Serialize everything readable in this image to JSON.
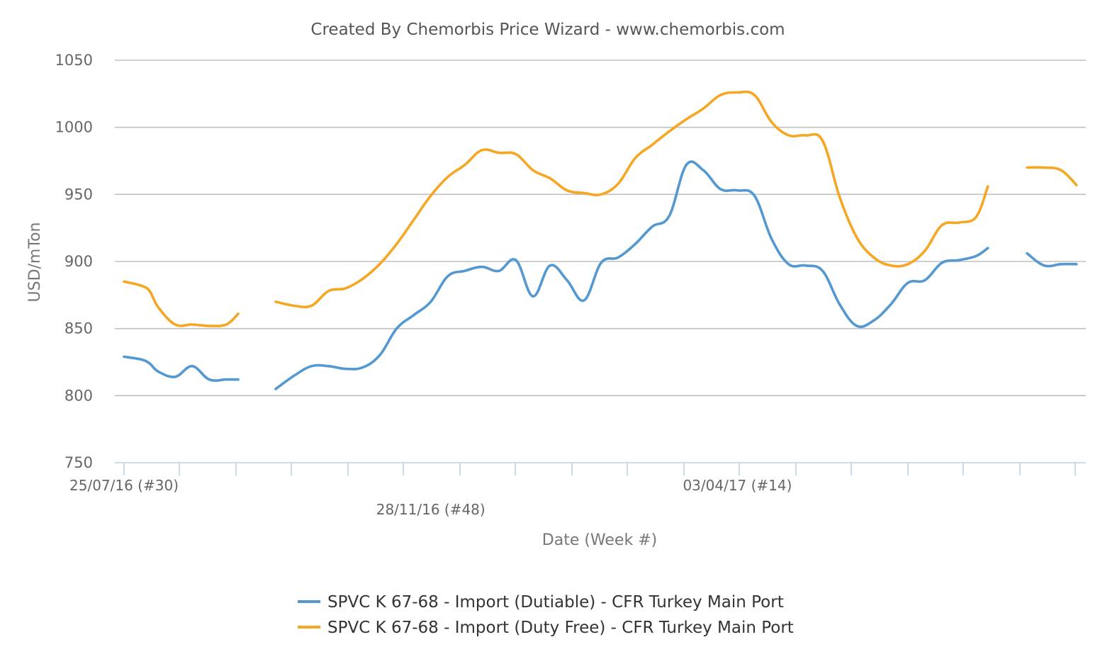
{
  "chart_data": {
    "type": "line",
    "title": "Created By Chemorbis Price Wizard - www.chemorbis.com",
    "xlabel": "Date (Week #)",
    "ylabel": "USD/mTon",
    "ylim": [
      750,
      1050
    ],
    "yticks": [
      750,
      800,
      850,
      900,
      950,
      1000,
      1050
    ],
    "grid": true,
    "legend_position": "bottom-center",
    "x_week_labels": [
      {
        "label": "25/07/16 (#30)",
        "week_index": 0
      },
      {
        "label": "28/11/16 (#48)",
        "week_index": 18
      },
      {
        "label": "03/04/17 (#14)",
        "week_index": 36
      }
    ],
    "x_range_weeks": [
      0,
      57
    ],
    "series": [
      {
        "name": "SPVC K 67-68 - Import (Dutiable) - CFR Turkey Main Port",
        "color": "#5398d0",
        "points": [
          [
            0,
            829
          ],
          [
            1,
            827
          ],
          [
            1.5,
            824
          ],
          [
            2,
            818
          ],
          [
            3,
            814
          ],
          [
            4,
            822
          ],
          [
            5,
            812
          ],
          [
            6,
            812
          ],
          [
            6.7,
            812
          ],
          null,
          [
            8.9,
            805
          ],
          [
            10,
            815
          ],
          [
            11,
            822
          ],
          [
            12,
            822
          ],
          [
            13,
            820
          ],
          [
            14,
            821
          ],
          [
            15,
            830
          ],
          [
            16,
            850
          ],
          [
            17,
            860
          ],
          [
            18,
            870
          ],
          [
            19,
            889
          ],
          [
            20,
            893
          ],
          [
            21,
            896
          ],
          [
            22,
            893
          ],
          [
            23,
            901
          ],
          [
            24,
            874
          ],
          [
            25,
            897
          ],
          [
            26,
            886
          ],
          [
            27,
            871
          ],
          [
            28,
            899
          ],
          [
            29,
            903
          ],
          [
            30,
            913
          ],
          [
            31,
            926
          ],
          [
            32,
            934
          ],
          [
            33,
            972
          ],
          [
            34,
            968
          ],
          [
            35,
            954
          ],
          [
            36,
            953
          ],
          [
            37,
            949
          ],
          [
            38,
            917
          ],
          [
            39,
            898
          ],
          [
            40,
            897
          ],
          [
            41,
            893
          ],
          [
            42,
            868
          ],
          [
            43,
            852
          ],
          [
            44,
            856
          ],
          [
            45,
            868
          ],
          [
            46,
            884
          ],
          [
            47,
            886
          ],
          [
            48,
            899
          ],
          [
            49,
            901
          ],
          [
            50,
            904
          ],
          [
            50.7,
            910
          ],
          null,
          [
            53,
            906
          ],
          [
            54,
            897
          ],
          [
            55,
            898
          ],
          [
            55.9,
            898
          ]
        ]
      },
      {
        "name": "SPVC K 67-68 - Import (Duty Free) - CFR Turkey Main Port",
        "color": "#f5a623",
        "points": [
          [
            0,
            885
          ],
          [
            1,
            882
          ],
          [
            1.5,
            878
          ],
          [
            2,
            866
          ],
          [
            3,
            853
          ],
          [
            4,
            853
          ],
          [
            5,
            852
          ],
          [
            6,
            853
          ],
          [
            6.7,
            861
          ],
          null,
          [
            8.9,
            870
          ],
          [
            10,
            867
          ],
          [
            11,
            867
          ],
          [
            12,
            878
          ],
          [
            13,
            880
          ],
          [
            14,
            887
          ],
          [
            15,
            898
          ],
          [
            16,
            913
          ],
          [
            17,
            931
          ],
          [
            18,
            949
          ],
          [
            19,
            963
          ],
          [
            20,
            972
          ],
          [
            21,
            983
          ],
          [
            22,
            981
          ],
          [
            23,
            980
          ],
          [
            24,
            968
          ],
          [
            25,
            962
          ],
          [
            26,
            953
          ],
          [
            27,
            951
          ],
          [
            28,
            950
          ],
          [
            29,
            958
          ],
          [
            30,
            977
          ],
          [
            31,
            987
          ],
          [
            32,
            997
          ],
          [
            33,
            1006
          ],
          [
            34,
            1014
          ],
          [
            35,
            1024
          ],
          [
            36,
            1026
          ],
          [
            37,
            1024
          ],
          [
            38,
            1004
          ],
          [
            39,
            994
          ],
          [
            40,
            994
          ],
          [
            41,
            990
          ],
          [
            42,
            948
          ],
          [
            43,
            918
          ],
          [
            44,
            903
          ],
          [
            45,
            897
          ],
          [
            46,
            898
          ],
          [
            47,
            908
          ],
          [
            48,
            927
          ],
          [
            49,
            929
          ],
          [
            50,
            933
          ],
          [
            50.7,
            956
          ],
          null,
          [
            53,
            970
          ],
          [
            54,
            970
          ],
          [
            55,
            968
          ],
          [
            55.9,
            957
          ]
        ]
      }
    ]
  }
}
